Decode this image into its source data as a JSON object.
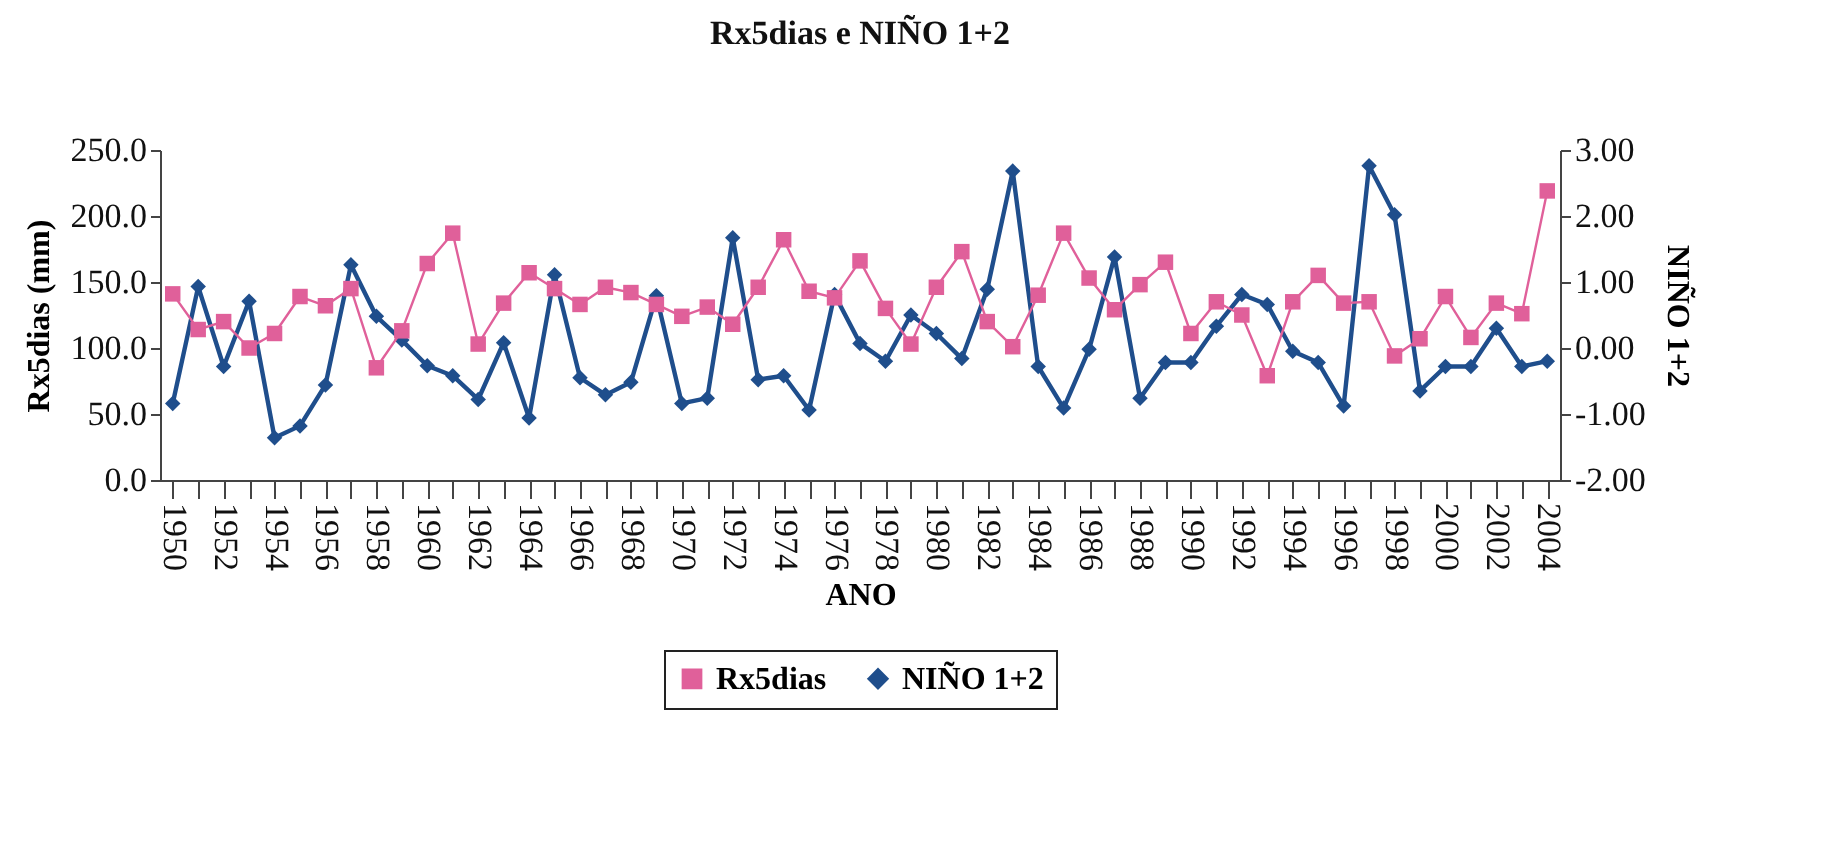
{
  "chart_data": {
    "type": "line",
    "title": "Rx5dias e NIÑO 1+2",
    "xlabel": "ANO",
    "ylabel": "Rx5dias (mm)",
    "y2label": "NIÑO 1+2",
    "categories": [
      "1950",
      null,
      "1952",
      null,
      "1954",
      null,
      "1956",
      null,
      "1958",
      null,
      "1960",
      null,
      "1962",
      null,
      "1964",
      null,
      "1966",
      null,
      "1968",
      null,
      "1970",
      null,
      "1972",
      null,
      "1974",
      null,
      "1976",
      null,
      "1978",
      null,
      "1980",
      null,
      "1982",
      null,
      "1984",
      null,
      "1986",
      null,
      "1988",
      null,
      "1990",
      null,
      "1992",
      null,
      "1994",
      null,
      "1996",
      null,
      "1998",
      null,
      "2000",
      null,
      "2002",
      null,
      "2004"
    ],
    "series": [
      {
        "name": "Rx5dias",
        "color": "#e0609a",
        "marker": "square",
        "values": [
          141,
          114,
          120,
          100,
          111,
          139,
          132,
          145,
          85,
          113,
          164,
          187,
          103,
          134,
          157,
          145,
          133,
          146,
          142,
          133,
          124,
          131,
          118,
          146,
          182,
          143,
          138,
          166,
          130,
          103,
          146,
          173,
          120,
          101,
          140,
          187,
          153,
          129,
          148,
          165,
          111,
          135,
          125,
          79,
          135,
          155,
          134,
          135,
          94,
          107,
          139,
          108,
          134,
          126,
          219
        ]
      },
      {
        "name": "NIÑO 1+2",
        "color": "#1f4e8c",
        "marker": "diamond",
        "axis": "y2",
        "values": [
          -0.84,
          0.93,
          -0.28,
          0.71,
          -1.36,
          -1.18,
          -0.56,
          1.26,
          0.48,
          0.12,
          -0.27,
          -0.42,
          -0.78,
          0.08,
          -1.06,
          1.11,
          -0.45,
          -0.71,
          -0.52,
          0.79,
          -0.84,
          -0.76,
          1.67,
          -0.48,
          -0.42,
          -0.94,
          0.81,
          0.07,
          -0.2,
          0.5,
          0.22,
          -0.16,
          0.89,
          2.68,
          -0.28,
          -0.91,
          -0.02,
          1.38,
          -0.76,
          -0.22,
          -0.22,
          0.33,
          0.81,
          0.66,
          -0.05,
          -0.22,
          -0.88,
          2.76,
          2.02,
          -0.65,
          -0.28,
          -0.28,
          0.3,
          -0.28,
          -0.2
        ]
      }
    ],
    "ylim": [
      0,
      250
    ],
    "yticks": [
      {
        "value": 0,
        "label": "0.0"
      },
      {
        "value": 50,
        "label": "50.0"
      },
      {
        "value": 100,
        "label": "100.0"
      },
      {
        "value": 150,
        "label": "150.0"
      },
      {
        "value": 200,
        "label": "200.0"
      },
      {
        "value": 250,
        "label": "250.0"
      }
    ],
    "y2lim": [
      -2,
      3
    ],
    "y2ticks": [
      {
        "value": -2,
        "label": "-2.00"
      },
      {
        "value": -1,
        "label": "-1.00"
      },
      {
        "value": 0,
        "label": "0.00"
      },
      {
        "value": 1,
        "label": "1.00"
      },
      {
        "value": 2,
        "label": "2.00"
      },
      {
        "value": 3,
        "label": "3.00"
      }
    ],
    "legend": "bottom",
    "grid": false,
    "line_style": "solid"
  }
}
